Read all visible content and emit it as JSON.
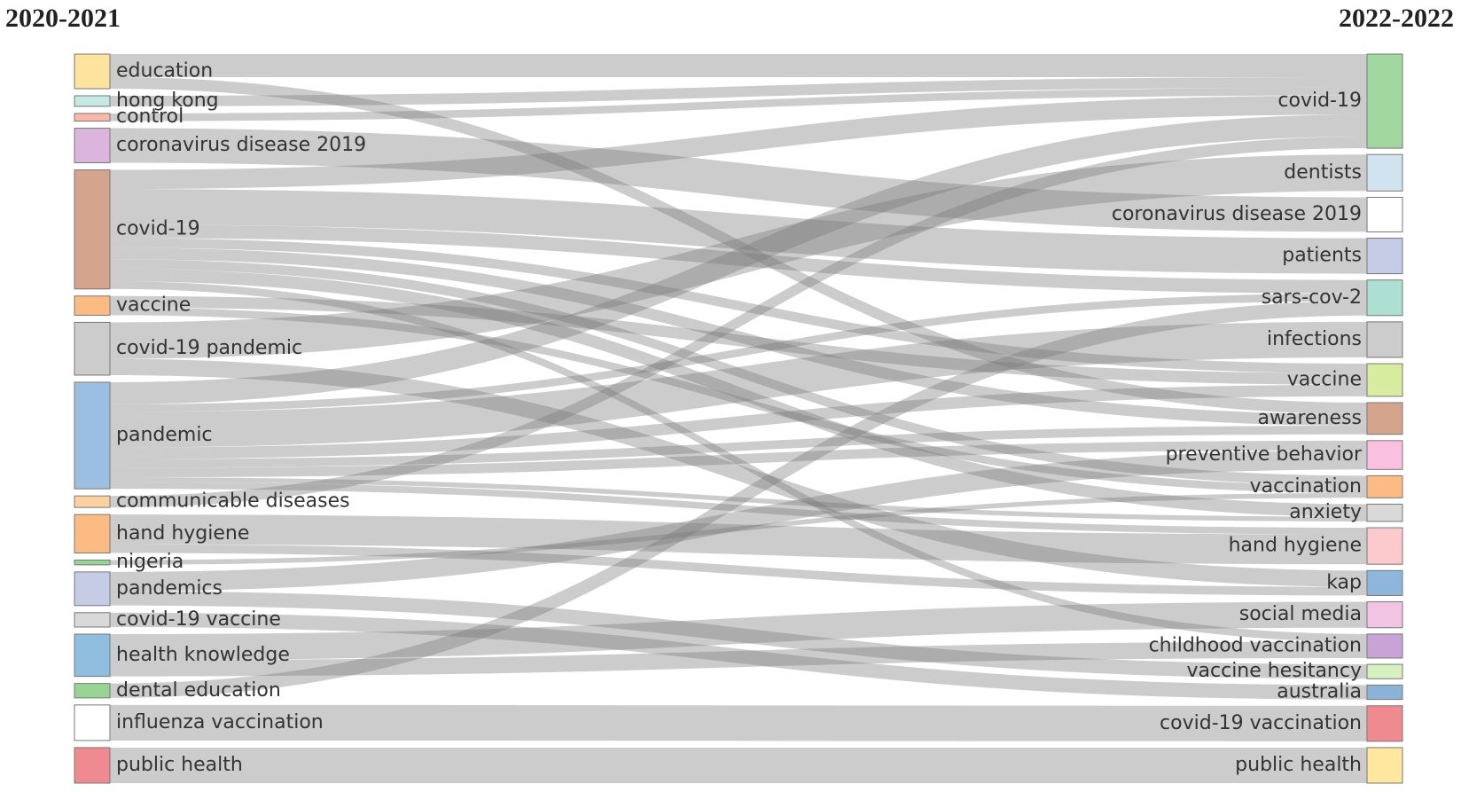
{
  "chart_data": {
    "type": "sankey",
    "left_title": "2020-2021",
    "right_title": "2022-2022",
    "left_nodes": [
      {
        "name": "education",
        "color": "#fde49e"
      },
      {
        "name": "hong kong",
        "color": "#c6e8e4"
      },
      {
        "name": "control",
        "color": "#f9b9a8"
      },
      {
        "name": "coronavirus disease 2019",
        "color": "#dbb5dc"
      },
      {
        "name": "covid-19",
        "color": "#d4a48c"
      },
      {
        "name": "vaccine",
        "color": "#fdbb84"
      },
      {
        "name": "covid-19 pandemic",
        "color": "#cccccc"
      },
      {
        "name": "pandemic",
        "color": "#9bbfe0"
      },
      {
        "name": "communicable diseases",
        "color": "#fdd0a2"
      },
      {
        "name": "hand hygiene",
        "color": "#fdbb84"
      },
      {
        "name": "nigeria",
        "color": "#98d594"
      },
      {
        "name": "pandemics",
        "color": "#c6cbe6"
      },
      {
        "name": "covid-19 vaccine",
        "color": "#d9d9d9"
      },
      {
        "name": "health knowledge",
        "color": "#8fbedf"
      },
      {
        "name": "dental education",
        "color": "#98d594"
      },
      {
        "name": "influenza vaccination",
        "color": "#ffffff"
      },
      {
        "name": "public health",
        "color": "#ef8a90"
      }
    ],
    "right_nodes": [
      {
        "name": "covid-19",
        "color": "#a2d8a0"
      },
      {
        "name": "dentists",
        "color": "#d2e3f0"
      },
      {
        "name": "coronavirus disease 2019",
        "color": "#ffffff"
      },
      {
        "name": "patients",
        "color": "#c6cbe6"
      },
      {
        "name": "sars-cov-2",
        "color": "#ade0d2"
      },
      {
        "name": "infections",
        "color": "#cccccc"
      },
      {
        "name": "vaccine",
        "color": "#d7ec9f"
      },
      {
        "name": "awareness",
        "color": "#d4a48c"
      },
      {
        "name": "preventive behavior",
        "color": "#f9c1df"
      },
      {
        "name": "vaccination",
        "color": "#fdbb84"
      },
      {
        "name": "anxiety",
        "color": "#d9d9d9"
      },
      {
        "name": "hand hygiene",
        "color": "#fcc9cc"
      },
      {
        "name": "kap",
        "color": "#8fb6dc"
      },
      {
        "name": "social media",
        "color": "#f1c4e3"
      },
      {
        "name": "childhood vaccination",
        "color": "#c9a3d6"
      },
      {
        "name": "vaccine hesitancy",
        "color": "#d7f0c0"
      },
      {
        "name": "australia",
        "color": "#8ab3d6"
      },
      {
        "name": "covid-19 vaccination",
        "color": "#ef8a90"
      },
      {
        "name": "public health",
        "color": "#fee79e"
      }
    ],
    "links": [
      {
        "source": "education",
        "target": "covid-19",
        "value": 24
      },
      {
        "source": "education",
        "target": "awareness",
        "value": 12
      },
      {
        "source": "hong kong",
        "target": "covid-19",
        "value": 11
      },
      {
        "source": "control",
        "target": "covid-19",
        "value": 8
      },
      {
        "source": "coronavirus disease 2019",
        "target": "coronavirus disease 2019",
        "value": 36
      },
      {
        "source": "covid-19",
        "target": "covid-19",
        "value": 20
      },
      {
        "source": "covid-19",
        "target": "patients",
        "value": 37
      },
      {
        "source": "covid-19",
        "target": "sars-cov-2",
        "value": 14
      },
      {
        "source": "covid-19",
        "target": "vaccine",
        "value": 10
      },
      {
        "source": "covid-19",
        "target": "awareness",
        "value": 12
      },
      {
        "source": "covid-19",
        "target": "vaccination",
        "value": 10
      },
      {
        "source": "covid-19",
        "target": "anxiety",
        "value": 13
      },
      {
        "source": "covid-19",
        "target": "childhood vaccination",
        "value": 8
      },
      {
        "source": "vaccine",
        "target": "vaccine",
        "value": 12
      },
      {
        "source": "vaccine",
        "target": "vaccination",
        "value": 8
      },
      {
        "source": "covid-19 pandemic",
        "target": "dentists",
        "value": 38
      },
      {
        "source": "covid-19 pandemic",
        "target": "kap",
        "value": 17
      },
      {
        "source": "pandemic",
        "target": "covid-19",
        "value": 23
      },
      {
        "source": "pandemic",
        "target": "sars-cov-2",
        "value": 8
      },
      {
        "source": "pandemic",
        "target": "infections",
        "value": 37
      },
      {
        "source": "pandemic",
        "target": "vaccine",
        "value": 12
      },
      {
        "source": "pandemic",
        "target": "awareness",
        "value": 9
      },
      {
        "source": "pandemic",
        "target": "preventive behavior",
        "value": 10
      },
      {
        "source": "pandemic",
        "target": "anxiety",
        "value": 5
      },
      {
        "source": "pandemic",
        "target": "hand hygiene",
        "value": 7
      },
      {
        "source": "communicable diseases",
        "target": "covid-19",
        "value": 12
      },
      {
        "source": "hand hygiene",
        "target": "hand hygiene",
        "value": 31
      },
      {
        "source": "hand hygiene",
        "target": "kap",
        "value": 9
      },
      {
        "source": "nigeria",
        "target": "vaccination",
        "value": 5
      },
      {
        "source": "pandemics",
        "target": "preventive behavior",
        "value": 20
      },
      {
        "source": "pandemics",
        "target": "vaccine hesitancy",
        "value": 15
      },
      {
        "source": "covid-19 vaccine",
        "target": "australia",
        "value": 15
      },
      {
        "source": "health knowledge",
        "target": "social media",
        "value": 27
      },
      {
        "source": "health knowledge",
        "target": "childhood vaccination",
        "value": 17
      },
      {
        "source": "dental education",
        "target": "sars-cov-2",
        "value": 15
      },
      {
        "source": "influenza vaccination",
        "target": "covid-19 vaccination",
        "value": 37
      },
      {
        "source": "public health",
        "target": "public health",
        "value": 37
      }
    ]
  }
}
